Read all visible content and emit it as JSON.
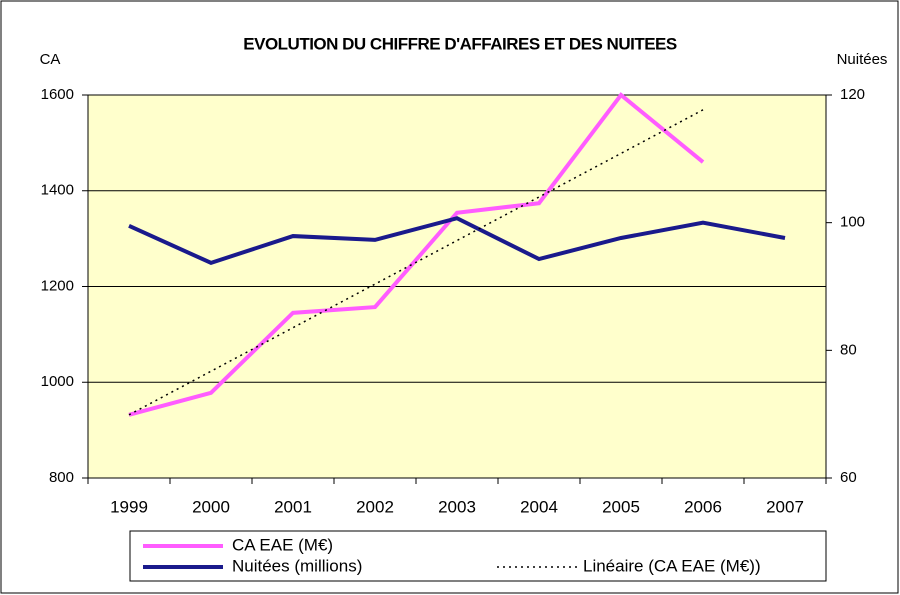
{
  "chart_data": {
    "type": "line",
    "title": "EVOLUTION DU CHIFFRE D'AFFAIRES ET DES NUITEES",
    "y_label": "CA",
    "y2_label": "Nuitées",
    "categories": [
      "1999",
      "2000",
      "2001",
      "2002",
      "2003",
      "2004",
      "2005",
      "2006",
      "2007"
    ],
    "series": [
      {
        "name": "CA EAE (M€)",
        "color": "#ff5cff",
        "values": [
          932,
          978,
          1145,
          1157,
          1354,
          1374,
          1600,
          1460,
          null
        ]
      },
      {
        "name": "Nuitées (millions)",
        "color": "#1a1a8c",
        "axis": "y2",
        "values": [
          99.5,
          93.7,
          97.9,
          97.3,
          100.7,
          94.3,
          97.6,
          100,
          97.6
        ]
      },
      {
        "name": "Linéaire (CA EAE (M€))",
        "color": "#000000",
        "dash": true,
        "values": [
          932,
          1023,
          1114,
          1205,
          1296,
          1387,
          1478,
          1569,
          null
        ]
      }
    ],
    "ylim": [
      800,
      1600
    ],
    "yticks": [
      800,
      1000,
      1200,
      1400,
      1600
    ],
    "y2lim": [
      60,
      120
    ],
    "y2ticks": [
      60,
      80,
      100,
      120
    ],
    "grid": true,
    "plot_background": "#ffffcc"
  }
}
